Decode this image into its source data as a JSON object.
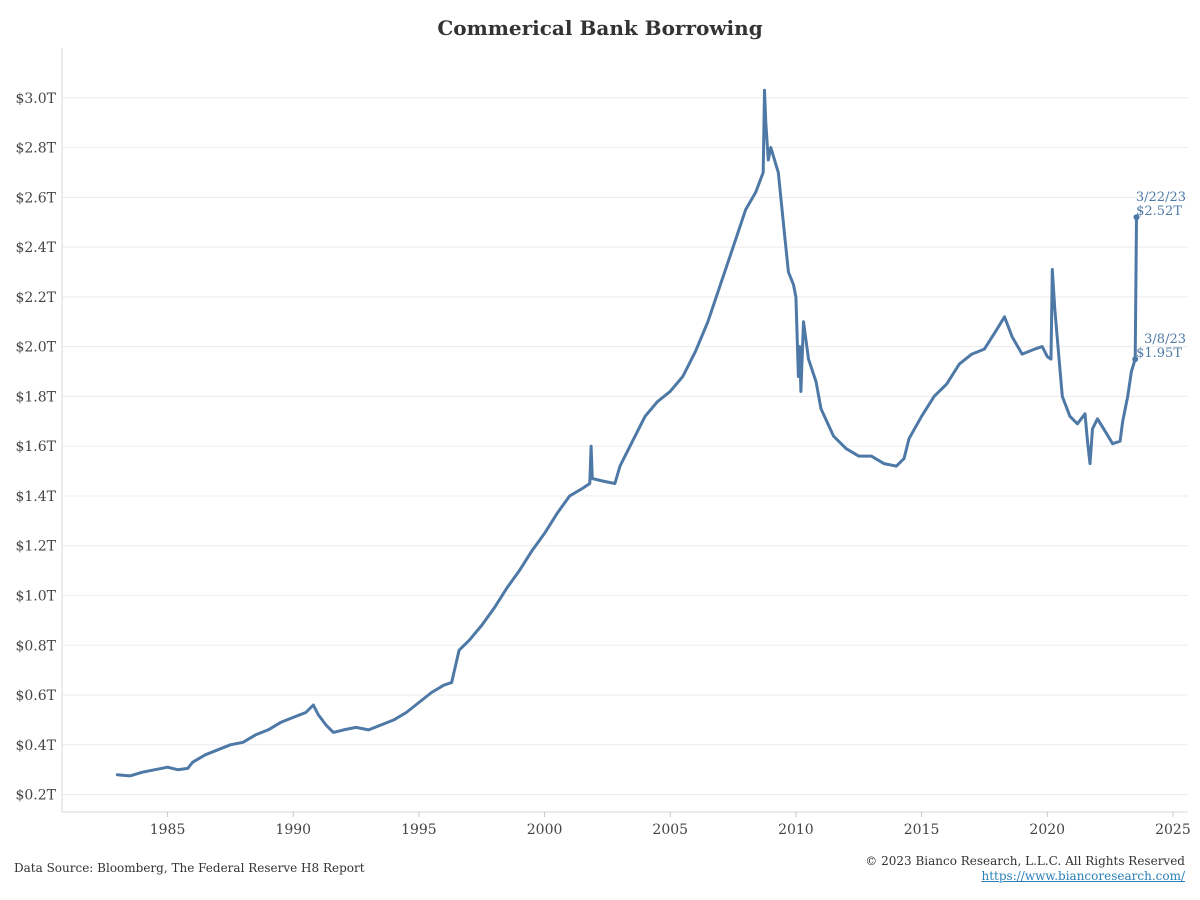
{
  "chart_data": {
    "type": "line",
    "title": "Commerical Bank Borrowing",
    "xlabel": "",
    "ylabel": "",
    "xlim": [
      1980.8,
      2025.6
    ],
    "ylim": [
      0.13,
      3.2
    ],
    "x_ticks": [
      1985,
      1990,
      1995,
      2000,
      2005,
      2010,
      2015,
      2020,
      2025
    ],
    "x_tick_labels": [
      "1985",
      "1990",
      "1995",
      "2000",
      "2005",
      "2010",
      "2015",
      "2020",
      "2025"
    ],
    "y_ticks": [
      0.2,
      0.4,
      0.6,
      0.8,
      1.0,
      1.2,
      1.4,
      1.6,
      1.8,
      2.0,
      2.2,
      2.4,
      2.6,
      2.8,
      3.0
    ],
    "y_tick_labels": [
      "$0.2T",
      "$0.4T",
      "$0.6T",
      "$0.8T",
      "$1.0T",
      "$1.2T",
      "$1.4T",
      "$1.6T",
      "$1.8T",
      "$2.0T",
      "$2.2T",
      "$2.4T",
      "$2.6T",
      "$2.8T",
      "$3.0T"
    ],
    "grid": "horizontal",
    "color": "#4e79a7",
    "series": [
      {
        "x": [
          1983.0,
          1983.5,
          1984.0,
          1984.5,
          1985.0,
          1985.4,
          1985.8,
          1986.0,
          1986.5,
          1987.0,
          1987.5,
          1988.0,
          1988.5,
          1989.0,
          1989.5,
          1990.0,
          1990.5,
          1990.8,
          1991.0,
          1991.3,
          1991.6,
          1992.0,
          1992.5,
          1993.0,
          1993.5,
          1994.0,
          1994.5,
          1995.0,
          1995.5,
          1996.0,
          1996.3,
          1996.6,
          1997.0,
          1997.5,
          1998.0,
          1998.5,
          1999.0,
          1999.5,
          2000.0,
          2000.5,
          2001.0,
          2001.5,
          2001.8,
          2001.85,
          2001.9,
          2002.3,
          2002.8,
          2003.0,
          2003.5,
          2004.0,
          2004.5,
          2005.0,
          2005.5,
          2006.0,
          2006.5,
          2007.0,
          2007.5,
          2008.0,
          2008.4,
          2008.7,
          2008.75,
          2008.8,
          2008.9,
          2009.0,
          2009.3,
          2009.5,
          2009.7,
          2009.9,
          2010.0,
          2010.1,
          2010.15,
          2010.2,
          2010.3,
          2010.5,
          2010.8,
          2011.0,
          2011.5,
          2012.0,
          2012.5,
          2013.0,
          2013.5,
          2014.0,
          2014.3,
          2014.5,
          2015.0,
          2015.5,
          2016.0,
          2016.5,
          2017.0,
          2017.5,
          2018.0,
          2018.3,
          2018.6,
          2019.0,
          2019.5,
          2019.8,
          2020.0,
          2020.15,
          2020.2,
          2020.3,
          2020.6,
          2020.9,
          2021.2,
          2021.5,
          2021.6,
          2021.7,
          2021.8,
          2022.0,
          2022.3,
          2022.6,
          2022.9,
          2023.0,
          2023.2,
          2023.35,
          2023.5,
          2023.55
        ],
        "values": [
          0.28,
          0.275,
          0.29,
          0.3,
          0.31,
          0.3,
          0.305,
          0.33,
          0.36,
          0.38,
          0.4,
          0.41,
          0.44,
          0.46,
          0.49,
          0.51,
          0.53,
          0.56,
          0.52,
          0.48,
          0.45,
          0.46,
          0.47,
          0.46,
          0.48,
          0.5,
          0.53,
          0.57,
          0.61,
          0.64,
          0.65,
          0.78,
          0.82,
          0.88,
          0.95,
          1.03,
          1.1,
          1.18,
          1.25,
          1.33,
          1.4,
          1.43,
          1.45,
          1.6,
          1.47,
          1.46,
          1.45,
          1.52,
          1.62,
          1.72,
          1.78,
          1.82,
          1.88,
          1.98,
          2.1,
          2.25,
          2.4,
          2.55,
          2.62,
          2.7,
          3.03,
          2.9,
          2.75,
          2.8,
          2.7,
          2.5,
          2.3,
          2.25,
          2.2,
          1.88,
          2.0,
          1.82,
          2.1,
          1.95,
          1.86,
          1.75,
          1.64,
          1.59,
          1.56,
          1.56,
          1.53,
          1.52,
          1.55,
          1.63,
          1.72,
          1.8,
          1.85,
          1.93,
          1.97,
          1.99,
          2.07,
          2.12,
          2.04,
          1.97,
          1.99,
          2.0,
          1.96,
          1.95,
          2.31,
          2.15,
          1.8,
          1.72,
          1.69,
          1.73,
          1.62,
          1.53,
          1.67,
          1.71,
          1.66,
          1.61,
          1.62,
          1.7,
          1.8,
          1.9,
          1.95,
          2.52
        ]
      }
    ],
    "annotations": [
      {
        "date": "3/22/23",
        "value": "$2.52T",
        "x": 2023.55,
        "y": 2.52
      },
      {
        "date": "3/8/23",
        "value": "$1.95T",
        "x": 2023.5,
        "y": 1.95
      }
    ]
  },
  "footer": {
    "source": "Data Source: Bloomberg, The Federal Reserve H8 Report",
    "copyright": "© 2023 Bianco Research, L.L.C. All Rights Reserved",
    "link": "https://www.biancoresearch.com/"
  }
}
